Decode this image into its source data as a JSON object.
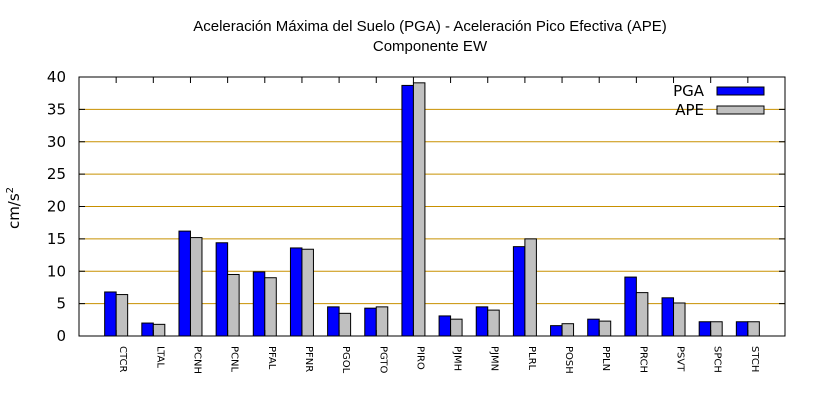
{
  "chart_data": {
    "type": "bar",
    "title": "Aceleración Máxima del Suelo (PGA) -  Aceleración Pico Efectiva (APE)",
    "subtitle": "Componente EW",
    "xlabel": "",
    "ylabel": "cm/s",
    "ylabel_superscript": "2",
    "ylim": [
      0,
      40
    ],
    "yticks": [
      0,
      5,
      10,
      15,
      20,
      25,
      30,
      35,
      40
    ],
    "grid": "horizontal",
    "legend_position": "top-right",
    "categories": [
      "CTCR",
      "LTAL",
      "PCNH",
      "PCNL",
      "PFAL",
      "PFNR",
      "PGOL",
      "PGTO",
      "PIRO",
      "PJMH",
      "PJMN",
      "PLRL",
      "POSH",
      "PPLN",
      "PRCH",
      "PSVT",
      "SPCH",
      "STCH"
    ],
    "series": [
      {
        "name": "PGA",
        "color": "#0000ff",
        "values": [
          6.8,
          2.0,
          16.2,
          14.4,
          9.9,
          13.6,
          4.5,
          4.3,
          38.7,
          3.1,
          4.5,
          13.8,
          1.6,
          2.6,
          9.1,
          5.9,
          2.2,
          2.2
        ]
      },
      {
        "name": "APE",
        "color": "#c0c0c0",
        "values": [
          6.4,
          1.8,
          15.2,
          9.5,
          9.0,
          13.4,
          3.5,
          4.5,
          39.1,
          2.6,
          4.0,
          15.0,
          1.9,
          2.3,
          6.7,
          5.1,
          2.2,
          2.2
        ]
      }
    ],
    "colors": {
      "grid": "#c89000",
      "axis": "#000000"
    }
  }
}
